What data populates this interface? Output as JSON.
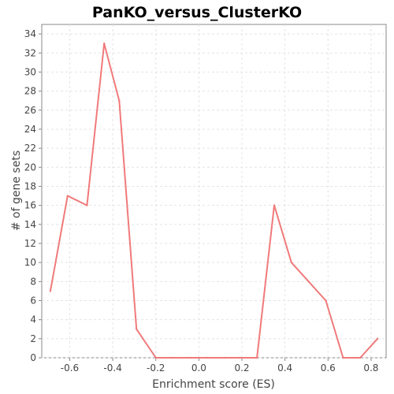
{
  "chart_data": {
    "type": "line",
    "title": "PanKO_versus_ClusterKO",
    "xlabel": "Enrichment score (ES)",
    "ylabel": "# of gene sets",
    "xlim": [
      -0.73,
      0.87
    ],
    "ylim": [
      0,
      35
    ],
    "x_ticks": [
      -0.6,
      -0.4,
      -0.2,
      0.0,
      0.2,
      0.4,
      0.6,
      0.8
    ],
    "x_tick_labels": [
      "-0.6",
      "-0.4",
      "-0.2",
      "0.0",
      "0.2",
      "0.4",
      "0.6",
      "0.8"
    ],
    "y_ticks": [
      0,
      2,
      4,
      6,
      8,
      10,
      12,
      14,
      16,
      18,
      20,
      22,
      24,
      26,
      28,
      30,
      32,
      34
    ],
    "grid": true,
    "series": [
      {
        "color": "#f07a7a",
        "x": [
          -0.69,
          -0.61,
          -0.52,
          -0.44,
          -0.37,
          -0.29,
          -0.2,
          -0.12,
          -0.04,
          0.04,
          0.12,
          0.19,
          0.27,
          0.35,
          0.43,
          0.51,
          0.59,
          0.67,
          0.75,
          0.83
        ],
        "y": [
          7,
          17,
          16,
          33,
          27,
          3,
          0,
          0,
          0,
          0,
          0,
          0,
          0,
          16,
          10,
          8,
          6,
          0,
          0,
          2
        ]
      }
    ]
  }
}
